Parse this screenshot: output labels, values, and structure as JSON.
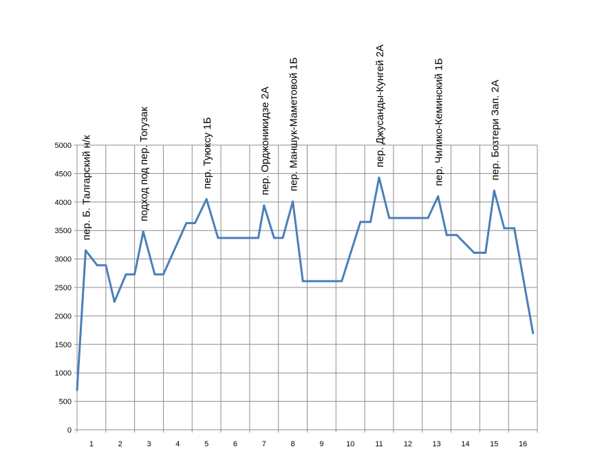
{
  "chart_data": {
    "type": "line",
    "title": "",
    "xlabel": "",
    "ylabel": "",
    "ylim": [
      0,
      5000
    ],
    "xlim": [
      0.5,
      16.5
    ],
    "y_ticks": [
      "0",
      "500",
      "1000",
      "1500",
      "2000",
      "2500",
      "3000",
      "3500",
      "4000",
      "4500",
      "5000"
    ],
    "x_ticks": [
      "1",
      "2",
      "3",
      "4",
      "5",
      "6",
      "7",
      "8",
      "9",
      "10",
      "11",
      "12",
      "13",
      "14",
      "15",
      "16"
    ],
    "grid": true,
    "legend": "none",
    "line_color": "#4a7ebb",
    "series": [
      {
        "points": [
          [
            0.5,
            700
          ],
          [
            0.8,
            3150
          ],
          [
            1.2,
            2890
          ],
          [
            1.5,
            2890
          ],
          [
            1.8,
            2250
          ],
          [
            2.2,
            2730
          ],
          [
            2.5,
            2730
          ],
          [
            2.8,
            3480
          ],
          [
            3.2,
            2730
          ],
          [
            3.5,
            2730
          ],
          [
            4.3,
            3630
          ],
          [
            4.6,
            3630
          ],
          [
            5.0,
            4050
          ],
          [
            5.4,
            3370
          ],
          [
            6.2,
            3370
          ],
          [
            6.8,
            3370
          ],
          [
            7.0,
            3940
          ],
          [
            7.35,
            3370
          ],
          [
            7.65,
            3370
          ],
          [
            8.0,
            4010
          ],
          [
            8.35,
            2610
          ],
          [
            9.7,
            2610
          ],
          [
            10.35,
            3650
          ],
          [
            10.7,
            3650
          ],
          [
            11.0,
            4430
          ],
          [
            11.35,
            3720
          ],
          [
            12.7,
            3720
          ],
          [
            13.05,
            4100
          ],
          [
            13.35,
            3420
          ],
          [
            13.7,
            3420
          ],
          [
            14.3,
            3110
          ],
          [
            14.7,
            3110
          ],
          [
            15.0,
            4200
          ],
          [
            15.35,
            3540
          ],
          [
            15.7,
            3540
          ],
          [
            16.35,
            1700
          ]
        ]
      }
    ],
    "annotations": [
      {
        "text": "пер. Б. Талгарский н/к",
        "x": 0.8
      },
      {
        "text": "подход под пер. Тогузак",
        "x": 2.8
      },
      {
        "text": "пер. Туюксу 1Б",
        "x": 5.0
      },
      {
        "text": "пер. Орджоникидзе 2А",
        "x": 7.0
      },
      {
        "text": "пер. Маншук-Маметовой 1Б",
        "x": 8.0
      },
      {
        "text": "пер. Джусанды-Кунгей 2А",
        "x": 11.0
      },
      {
        "text": "пер. Чилико-Кеминский 1Б",
        "x": 13.05
      },
      {
        "text": "пер. Бозтери Зап. 2А",
        "x": 15.0
      }
    ]
  }
}
